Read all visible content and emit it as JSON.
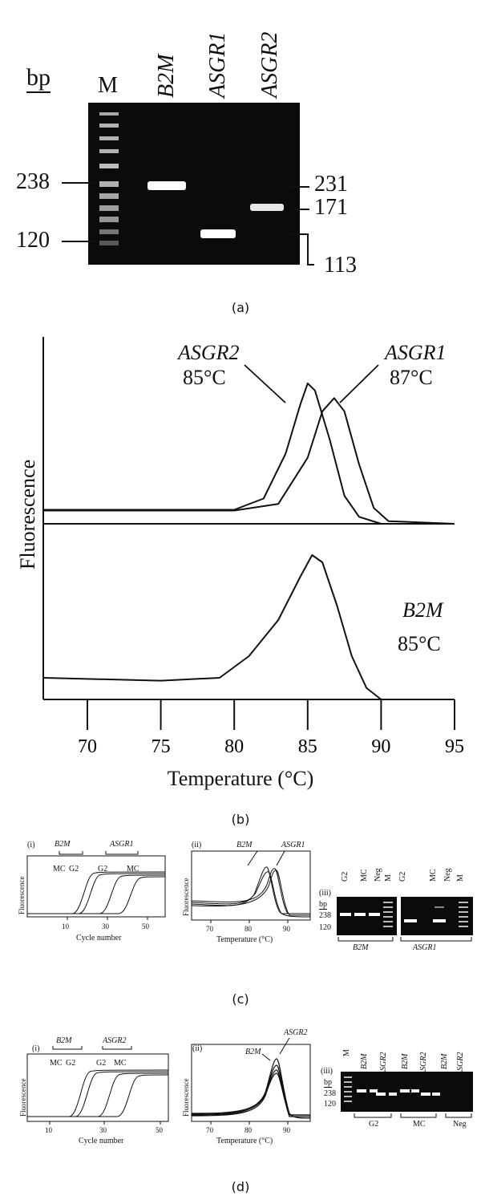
{
  "panel_a": {
    "caption": "(a)",
    "bp_label": "bp",
    "marker_label": "M",
    "lanes": [
      "B2M",
      "ASGR1",
      "ASGR2"
    ],
    "left_markers": [
      "238",
      "120"
    ],
    "right_markers": [
      "231",
      "171",
      "113"
    ]
  },
  "panel_b": {
    "caption": "(b)",
    "ylabel": "Fluorescence",
    "xlabel": "Temperature (°C)",
    "xticks": [
      "70",
      "75",
      "80",
      "85",
      "90",
      "95"
    ],
    "annotations": [
      {
        "gene": "ASGR2",
        "temp": "85°C"
      },
      {
        "gene": "ASGR1",
        "temp": "87°C"
      },
      {
        "gene": "B2M",
        "temp": "85°C"
      }
    ]
  },
  "chart_data": [
    {
      "type": "line",
      "title": "",
      "xlabel": "Temperature (°C)",
      "ylabel": "Fluorescence",
      "xlim": [
        67,
        95
      ],
      "series": [
        {
          "name": "ASGR2",
          "x": [
            67,
            75,
            80,
            82,
            83.5,
            84.5,
            85,
            85.5,
            86.5,
            87.5,
            88.5,
            90,
            95
          ],
          "y": [
            0.1,
            0.1,
            0.1,
            0.18,
            0.5,
            0.85,
            1.0,
            0.95,
            0.6,
            0.2,
            0.05,
            0.0,
            0.0
          ]
        },
        {
          "name": "ASGR1",
          "x": [
            67,
            75,
            80,
            83,
            85,
            86,
            86.8,
            87.5,
            88.5,
            89.5,
            90.5,
            95
          ],
          "y": [
            0.1,
            0.1,
            0.1,
            0.15,
            0.5,
            0.85,
            0.95,
            0.85,
            0.45,
            0.12,
            0.02,
            0.0
          ]
        },
        {
          "name": "B2M",
          "x": [
            67,
            75,
            79,
            81,
            83,
            84.5,
            85.3,
            86,
            87,
            88,
            89,
            90,
            95
          ],
          "y": [
            0.15,
            0.13,
            0.15,
            0.3,
            0.55,
            0.85,
            1.0,
            0.95,
            0.65,
            0.3,
            0.08,
            0.0,
            0.0
          ]
        }
      ]
    }
  ],
  "panel_c": {
    "caption": "(c)",
    "i_label": "(i)",
    "ii_label": "(ii)",
    "iii_label": "(iii)",
    "i_genes": [
      "B2M",
      "ASGR1"
    ],
    "i_curves": [
      "MC",
      "G2",
      "G2",
      "MC"
    ],
    "i_ylabel": "Fluorescence",
    "i_xlabel": "Cycle number",
    "i_xticks": [
      "10",
      "30",
      "50"
    ],
    "ii_genes": [
      "B2M",
      "ASGR1"
    ],
    "ii_ylabel": "Fluorescence",
    "ii_xlabel": "Temperature (°C)",
    "ii_xticks": [
      "70",
      "80",
      "90"
    ],
    "iii_bp": "bp",
    "iii_markers": [
      "238",
      "120"
    ],
    "iii_top": [
      "G2",
      "MC",
      "Neg",
      "M",
      "G2",
      "MC",
      "Neg",
      "M"
    ],
    "iii_bottom": [
      "B2M",
      "ASGR1"
    ]
  },
  "panel_d": {
    "caption": "(d)",
    "i_label": "(i)",
    "ii_label": "(ii)",
    "iii_label": "(iii)",
    "i_genes": [
      "B2M",
      "ASGR2"
    ],
    "i_curves": [
      "MC",
      "G2",
      "G2",
      "MC"
    ],
    "i_ylabel": "Fluorescence",
    "i_xlabel": "Cycle number",
    "i_xticks": [
      "10",
      "30",
      "50"
    ],
    "ii_genes": [
      "B2M",
      "ASGR2"
    ],
    "ii_ylabel": "Fluorescence",
    "ii_xlabel": "Temperature (°C)",
    "ii_xticks": [
      "70",
      "80",
      "90"
    ],
    "iii_bp": "bp",
    "iii_markers": [
      "238",
      "120"
    ],
    "iii_top": [
      "M",
      "B2M",
      "ASGR2",
      "B2M",
      "ASGR2",
      "B2M",
      "ASGR2"
    ],
    "iii_bottom": [
      "G2",
      "MC",
      "Neg"
    ]
  }
}
